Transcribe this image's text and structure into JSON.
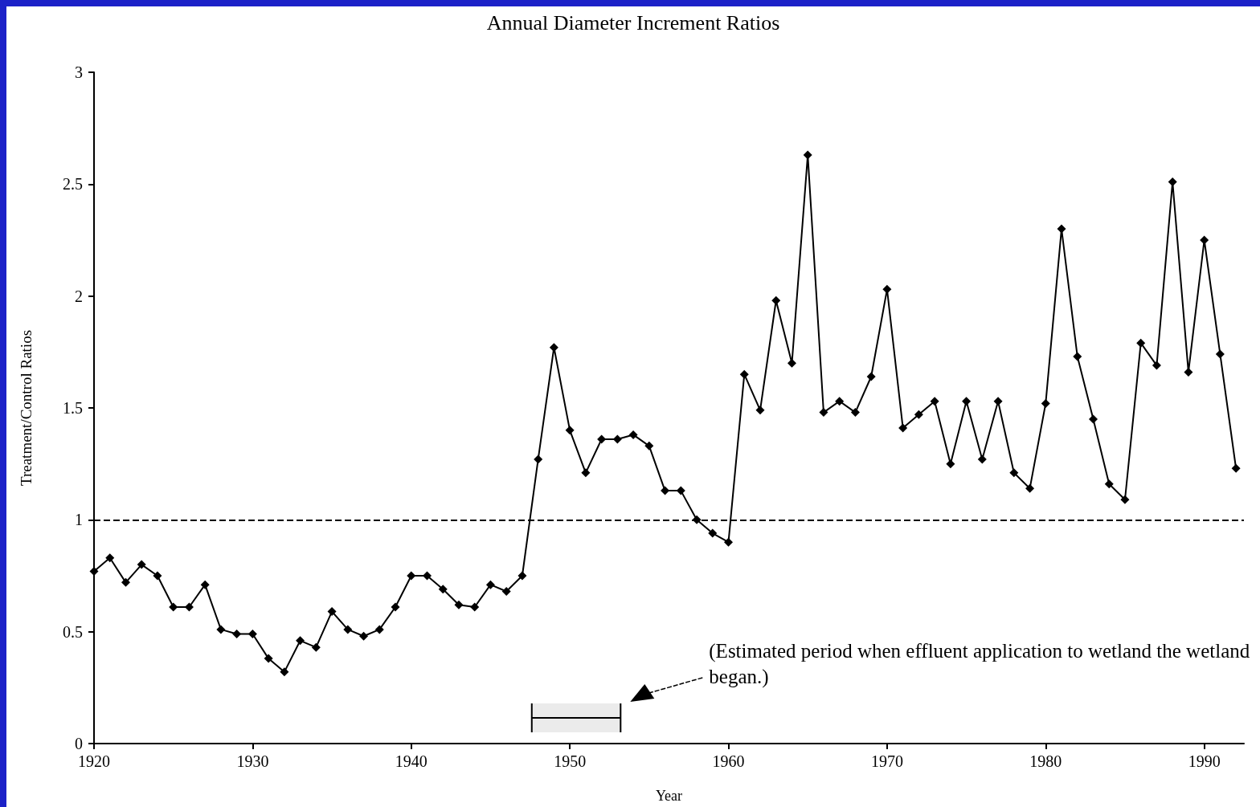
{
  "chart_data": {
    "type": "line",
    "title": "Annual Diameter Increment Ratios",
    "xlabel": "Year",
    "ylabel": "Treatment/Control Ratios",
    "x": [
      1920,
      1921,
      1922,
      1923,
      1924,
      1925,
      1926,
      1927,
      1928,
      1929,
      1930,
      1931,
      1932,
      1933,
      1934,
      1935,
      1936,
      1937,
      1938,
      1939,
      1940,
      1941,
      1942,
      1943,
      1944,
      1945,
      1946,
      1947,
      1948,
      1949,
      1950,
      1951,
      1952,
      1953,
      1954,
      1955,
      1956,
      1957,
      1958,
      1959,
      1960,
      1961,
      1962,
      1963,
      1964,
      1965,
      1966,
      1967,
      1968,
      1969,
      1970,
      1971,
      1972,
      1973,
      1974,
      1975,
      1976,
      1977,
      1978,
      1979,
      1980,
      1981,
      1982,
      1983,
      1984,
      1985,
      1986,
      1987,
      1988,
      1989,
      1990,
      1991,
      1992
    ],
    "series": [
      {
        "color": "#000000",
        "values": [
          0.77,
          0.83,
          0.72,
          0.8,
          0.75,
          0.61,
          0.61,
          0.71,
          0.51,
          0.49,
          0.49,
          0.38,
          0.32,
          0.46,
          0.43,
          0.59,
          0.51,
          0.48,
          0.51,
          0.61,
          0.75,
          0.75,
          0.69,
          0.62,
          0.61,
          0.71,
          0.68,
          0.75,
          1.27,
          1.77,
          1.4,
          1.21,
          1.36,
          1.36,
          1.38,
          1.33,
          1.13,
          1.13,
          1.0,
          0.94,
          0.9,
          1.65,
          1.49,
          1.98,
          1.7,
          2.63,
          1.48,
          1.53,
          1.48,
          1.64,
          2.03,
          1.41,
          1.47,
          1.53,
          1.25,
          1.53,
          1.27,
          1.53,
          1.21,
          1.14,
          1.52,
          2.3,
          1.73,
          1.45,
          1.16,
          1.09,
          1.79,
          1.69,
          2.51,
          1.66,
          2.25,
          1.74,
          1.23
        ]
      }
    ],
    "xlim": [
      1920,
      1992.5
    ],
    "xticks": [
      1920,
      1930,
      1940,
      1950,
      1960,
      1970,
      1980,
      1990
    ],
    "ylim": [
      0,
      3
    ],
    "yticks": [
      0,
      0.5,
      1,
      1.5,
      2,
      2.5,
      3
    ],
    "ref_lines": [
      {
        "axis": "y",
        "value": 1,
        "line_style": "dashed",
        "color": "#000000"
      }
    ],
    "bands": [
      {
        "axis": "x",
        "from": 1947.6,
        "to": 1953.2,
        "label": "(Estimated period when effluent application to wetland the wetland began.)",
        "color": "#000000"
      }
    ],
    "grid": false,
    "marker": "diamond",
    "line_style": "solid"
  }
}
